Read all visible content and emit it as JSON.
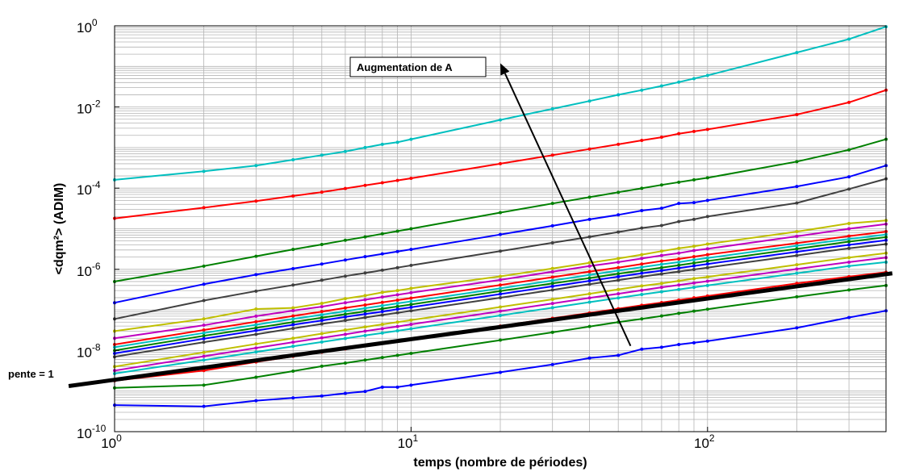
{
  "chart_data": {
    "type": "line",
    "title": "",
    "xlabel": "temps (nombre de périodes)",
    "ylabel": "<dqm²> (ADIM)",
    "xscale": "log",
    "yscale": "log",
    "xlim": [
      1,
      400
    ],
    "ylim": [
      1e-10,
      1
    ],
    "grid": true,
    "x_ticks": [
      {
        "value": 1,
        "base": "10",
        "exp": "0"
      },
      {
        "value": 10,
        "base": "10",
        "exp": "1"
      },
      {
        "value": 100,
        "base": "10",
        "exp": "2"
      }
    ],
    "y_ticks": [
      {
        "value": 1e-10,
        "base": "10",
        "exp": "-10"
      },
      {
        "value": 1e-08,
        "base": "10",
        "exp": "-8"
      },
      {
        "value": 1e-06,
        "base": "10",
        "exp": "-6"
      },
      {
        "value": 0.0001,
        "base": "10",
        "exp": "-4"
      },
      {
        "value": 0.01,
        "base": "10",
        "exp": "-2"
      },
      {
        "value": 1,
        "base": "10",
        "exp": "0"
      }
    ],
    "x": [
      1,
      2,
      3,
      4,
      5,
      6,
      7,
      8,
      9,
      10,
      20,
      30,
      40,
      50,
      60,
      70,
      80,
      90,
      100,
      200,
      300,
      400
    ],
    "series": [
      {
        "color": "#00BFBF",
        "values": [
          0.00016,
          0.00026,
          0.00036,
          0.0005,
          0.00065,
          0.0008,
          0.001,
          0.0012,
          0.00135,
          0.0016,
          0.0048,
          0.009,
          0.014,
          0.02,
          0.026,
          0.033,
          0.041,
          0.05,
          0.06,
          0.22,
          0.47,
          0.95
        ]
      },
      {
        "color": "#FF0000",
        "values": [
          1.8e-05,
          3.3e-05,
          4.8e-05,
          6.4e-05,
          8e-05,
          9.8e-05,
          0.000117,
          0.000136,
          0.000155,
          0.000175,
          0.0004,
          0.00065,
          0.00092,
          0.0012,
          0.0015,
          0.0018,
          0.0022,
          0.0025,
          0.0028,
          0.0065,
          0.013,
          0.026
        ]
      },
      {
        "color": "#008000",
        "values": [
          5e-07,
          1.2e-06,
          2.1e-06,
          3.1e-06,
          4.1e-06,
          5.2e-06,
          6.3e-06,
          7.5e-06,
          8.7e-06,
          1e-05,
          2.5e-05,
          4.2e-05,
          6e-05,
          7.9e-05,
          9.9e-05,
          0.00012,
          0.00014,
          0.00016,
          0.00018,
          0.00045,
          0.00088,
          0.0016
        ]
      },
      {
        "color": "#0000FF",
        "values": [
          1.5e-07,
          4.3e-07,
          7.4e-07,
          1.04e-06,
          1.35e-06,
          1.7e-06,
          2.05e-06,
          2.4e-06,
          2.75e-06,
          3.1e-06,
          7.2e-06,
          1.18e-05,
          1.7e-05,
          2.2e-05,
          2.8e-05,
          3.2e-05,
          4.2e-05,
          4.4e-05,
          5e-05,
          0.00011,
          0.00019,
          0.00036
        ]
      },
      {
        "color": "#404040",
        "values": [
          6e-08,
          1.7e-07,
          2.9e-07,
          4.1e-07,
          5.4e-07,
          6.8e-07,
          8.1e-07,
          9.5e-07,
          1.1e-06,
          1.25e-06,
          2.8e-06,
          4.5e-06,
          6.3e-06,
          8.3e-06,
          1.04e-05,
          1.2e-05,
          1.5e-05,
          1.7e-05,
          2e-05,
          4.3e-05,
          9.5e-05,
          0.00017
        ]
      },
      {
        "color": "#BFBF00",
        "values": [
          3e-08,
          6e-08,
          1.05e-07,
          1.12e-07,
          1.45e-07,
          1.9e-07,
          2.25e-07,
          2.7e-07,
          3e-07,
          3.4e-07,
          6.7e-07,
          1.05e-06,
          1.45e-06,
          1.85e-06,
          2.3e-06,
          2.8e-06,
          3.3e-06,
          3.7e-06,
          4.2e-06,
          8.5e-06,
          1.35e-05,
          1.6e-05
        ]
      },
      {
        "color": "#BF00BF",
        "values": [
          2e-08,
          4.2e-08,
          7e-08,
          9.6e-08,
          1.2e-07,
          1.5e-07,
          1.78e-07,
          2.08e-07,
          2.35e-07,
          2.65e-07,
          5.5e-07,
          8.7e-07,
          1.2e-06,
          1.5e-06,
          1.85e-06,
          2.2e-06,
          2.5e-06,
          2.9e-06,
          3.2e-06,
          6.5e-06,
          1e-05,
          1.3e-05
        ]
      },
      {
        "color": "#FF0000",
        "values": [
          1.4e-08,
          3.2e-08,
          5.1e-08,
          7.1e-08,
          9.1e-08,
          1.12e-07,
          1.32e-07,
          1.53e-07,
          1.74e-07,
          1.95e-07,
          4.1e-07,
          6.4e-07,
          8.8e-07,
          1.1e-06,
          1.35e-06,
          1.6e-06,
          1.8e-06,
          2.05e-06,
          2.3e-06,
          4.4e-06,
          6.6e-06,
          8.5e-06
        ]
      },
      {
        "color": "#00BFBF",
        "values": [
          1.2e-08,
          2.7e-08,
          4.3e-08,
          6e-08,
          7.6e-08,
          9.3e-08,
          1.1e-07,
          1.27e-07,
          1.45e-07,
          1.62e-07,
          3.4e-07,
          5.3e-07,
          7.3e-07,
          9.3e-07,
          1.13e-06,
          1.33e-06,
          1.5e-06,
          1.72e-06,
          1.9e-06,
          3.8e-06,
          5.6e-06,
          7.2e-06
        ]
      },
      {
        "color": "#008000",
        "values": [
          1e-08,
          2.3e-08,
          3.6e-08,
          5e-08,
          6.4e-08,
          7.8e-08,
          9.2e-08,
          1.07e-07,
          1.21e-07,
          1.36e-07,
          2.9e-07,
          4.5e-07,
          6.1e-07,
          7.8e-07,
          9.4e-07,
          1.1e-06,
          1.26e-06,
          1.43e-06,
          1.6e-06,
          3.2e-06,
          4.8e-06,
          6.2e-06
        ]
      },
      {
        "color": "#0000FF",
        "values": [
          8.5e-09,
          1.95e-08,
          3.1e-08,
          4.3e-08,
          5.5e-08,
          6.7e-08,
          7.9e-08,
          9.1e-08,
          1.04e-07,
          1.16e-07,
          2.45e-07,
          3.8e-07,
          5.2e-07,
          6.6e-07,
          8e-07,
          9.3e-07,
          1.07e-06,
          1.21e-06,
          1.35e-06,
          2.7e-06,
          4e-06,
          5.2e-06
        ]
      },
      {
        "color": "#404040",
        "values": [
          7e-09,
          1.6e-08,
          2.5e-08,
          3.5e-08,
          4.5e-08,
          5.5e-08,
          6.5e-08,
          7.5e-08,
          8.5e-08,
          9.5e-08,
          2e-07,
          3.1e-07,
          4.3e-07,
          5.4e-07,
          6.6e-07,
          7.7e-07,
          8.8e-07,
          9.9e-07,
          1.1e-06,
          2.2e-06,
          3.3e-06,
          4.2e-06
        ]
      },
      {
        "color": "#BFBF00",
        "values": [
          4e-09,
          9e-09,
          1.45e-08,
          2e-08,
          2.6e-08,
          3.2e-08,
          3.8e-08,
          4.4e-08,
          5e-08,
          5.6e-08,
          1.18e-07,
          1.82e-07,
          2.5e-07,
          3.2e-07,
          3.9e-07,
          4.5e-07,
          5.2e-07,
          5.9e-07,
          6.5e-07,
          1.3e-06,
          1.95e-06,
          2.5e-06
        ]
      },
      {
        "color": "#BF00BF",
        "values": [
          3.2e-09,
          7.2e-09,
          1.15e-08,
          1.6e-08,
          2.05e-08,
          2.5e-08,
          3e-08,
          3.45e-08,
          3.9e-08,
          4.4e-08,
          9.3e-08,
          1.44e-07,
          1.97e-07,
          2.5e-07,
          3.05e-07,
          3.6e-07,
          4.1e-07,
          4.6e-07,
          5.1e-07,
          1.02e-06,
          1.5e-06,
          1.95e-06
        ]
      },
      {
        "color": "#00BFBF",
        "values": [
          2.7e-09,
          5.8e-09,
          9.2e-09,
          1.27e-08,
          1.62e-08,
          1.98e-08,
          2.34e-08,
          2.7e-08,
          3.06e-08,
          3.42e-08,
          7.3e-08,
          1.13e-07,
          1.55e-07,
          1.97e-07,
          2.4e-07,
          2.8e-07,
          3.2e-07,
          3.6e-07,
          4e-07,
          8e-07,
          1.2e-06,
          1.5e-06
        ]
      },
      {
        "color": "#FF0000",
        "values": [
          1.8e-09,
          3.2e-09,
          5.2e-09,
          7.2e-09,
          9.1e-09,
          1.1e-08,
          1.3e-08,
          1.5e-08,
          1.7e-08,
          1.9e-08,
          4e-08,
          6.2e-08,
          8.4e-08,
          1.07e-07,
          1.3e-07,
          1.52e-07,
          1.75e-07,
          1.98e-07,
          2.2e-07,
          4.5e-07,
          6.6e-07,
          8.5e-07
        ]
      },
      {
        "color": "#008000",
        "values": [
          1.2e-09,
          1.4e-09,
          2.2e-09,
          3.1e-09,
          4.1e-09,
          4.9e-09,
          5.8e-09,
          6.7e-09,
          7.6e-09,
          8.5e-09,
          1.8e-08,
          2.8e-08,
          3.9e-08,
          5e-08,
          6e-08,
          7.1e-08,
          8.2e-08,
          9.3e-08,
          1.04e-07,
          2.1e-07,
          3.1e-07,
          4e-07
        ]
      },
      {
        "color": "#0000FF",
        "values": [
          4.5e-10,
          4.2e-10,
          5.8e-10,
          6.8e-10,
          7.6e-10,
          8.8e-10,
          9.8e-10,
          1.25e-09,
          1.25e-09,
          1.4e-09,
          2.9e-09,
          4.5e-09,
          6.5e-09,
          7.6e-09,
          1.08e-08,
          1.2e-08,
          1.4e-08,
          1.55e-08,
          1.7e-08,
          3.6e-08,
          6.5e-08,
          9.5e-08
        ]
      }
    ],
    "reference_line": {
      "label": "pente = 1",
      "slope": 1,
      "y_at_x1": 1.9e-09,
      "x_start": 0.7,
      "x_end": 420,
      "color": "#000000"
    },
    "annotation": {
      "text": "Augmentation de A",
      "arrow_from": [
        55,
        1.3e-08
      ],
      "arrow_to": [
        20,
        0.12
      ]
    }
  }
}
